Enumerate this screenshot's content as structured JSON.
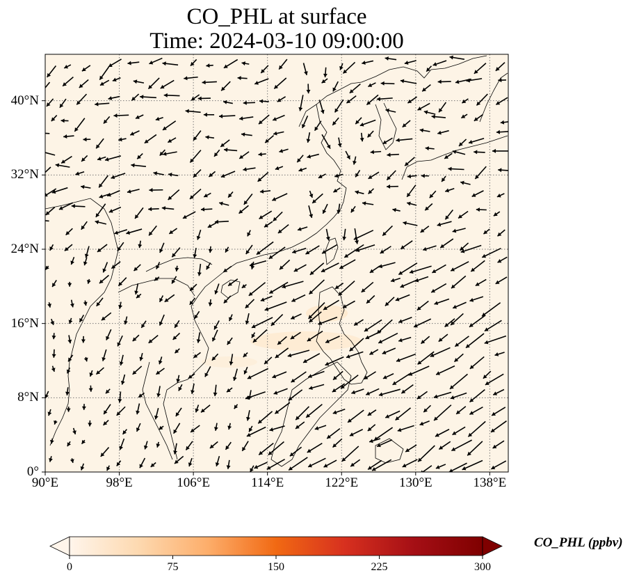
{
  "title_line1": "CO_PHL at surface",
  "title_line2": "Time: 2024-03-10 09:00:00",
  "map": {
    "extent": {
      "lon_min": 90,
      "lon_max": 140,
      "lat_min": 0,
      "lat_max": 45
    },
    "gridlines": "dotted",
    "lon_ticks": [
      {
        "value": 90,
        "label": "90°E"
      },
      {
        "value": 98,
        "label": "98°E"
      },
      {
        "value": 106,
        "label": "106°E"
      },
      {
        "value": 114,
        "label": "114°E"
      },
      {
        "value": 122,
        "label": "122°E"
      },
      {
        "value": 130,
        "label": "130°E"
      },
      {
        "value": 138,
        "label": "138°E"
      }
    ],
    "lat_ticks": [
      {
        "value": 0,
        "label": "0°"
      },
      {
        "value": 8,
        "label": "8°N"
      },
      {
        "value": 16,
        "label": "16°N"
      },
      {
        "value": 24,
        "label": "24°N"
      },
      {
        "value": 32,
        "label": "32°N"
      },
      {
        "value": 40,
        "label": "40°N"
      }
    ],
    "field_color": "#fdf4e6",
    "coastline_color": "#000000"
  },
  "colorbar": {
    "label": "CO_PHL (ppbv)",
    "min": 0,
    "max": 300,
    "ticks": [
      "0",
      "75",
      "150",
      "225",
      "300"
    ],
    "colors": [
      "#fff5eb",
      "#fdd9b0",
      "#fdae6b",
      "#f16913",
      "#d7301f",
      "#a50f15",
      "#7f0000"
    ],
    "extend": "both"
  }
}
